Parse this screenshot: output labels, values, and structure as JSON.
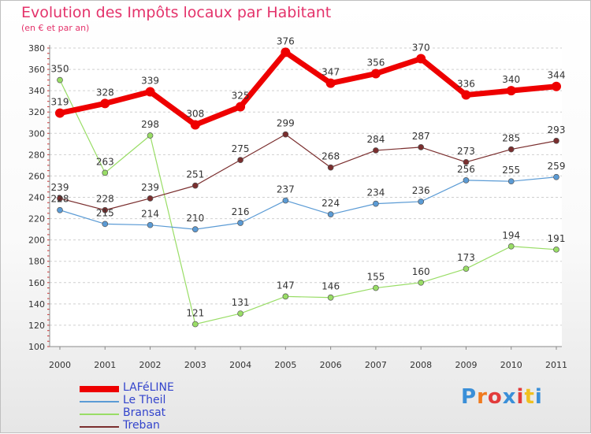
{
  "title": "Evolution des Impôts locaux par Habitant",
  "subtitle": "(en € et par an)",
  "logo": {
    "text": "Proxiti",
    "colors": [
      "#3a8fd8",
      "#f07a1e",
      "#e23b3b",
      "#3a8fd8",
      "#e23b3b",
      "#f0c020",
      "#3a8fd8"
    ]
  },
  "chart_data": {
    "type": "line",
    "title": "Evolution des Impôts locaux par Habitant",
    "subtitle": "(en € et par an)",
    "xlabel": "",
    "ylabel": "",
    "x": [
      "2000",
      "2001",
      "2002",
      "2003",
      "2004",
      "2005",
      "2006",
      "2007",
      "2008",
      "2009",
      "2010",
      "2011"
    ],
    "ylim": [
      100,
      380
    ],
    "yticks": [
      "100",
      "120",
      "140",
      "160",
      "180",
      "200",
      "220",
      "240",
      "260",
      "280",
      "300",
      "320",
      "340",
      "360",
      "380"
    ],
    "grid": "horizontal dashed",
    "legend_position": "bottom-left",
    "series": [
      {
        "name": "LAFéLINE",
        "color": "#ee0000",
        "values": [
          319,
          328,
          339,
          308,
          325,
          376,
          347,
          356,
          370,
          336,
          340,
          344
        ]
      },
      {
        "name": "Le Theil",
        "color": "#5b9bd5",
        "values": [
          228,
          215,
          214,
          210,
          216,
          237,
          224,
          234,
          236,
          256,
          255,
          259
        ]
      },
      {
        "name": "Bransat",
        "color": "#99dd66",
        "values": [
          350,
          263,
          298,
          121,
          131,
          147,
          146,
          155,
          160,
          173,
          194,
          191
        ]
      },
      {
        "name": "Treban",
        "color": "#7a2e2e",
        "values": [
          239,
          228,
          239,
          251,
          275,
          299,
          268,
          284,
          287,
          273,
          285,
          293
        ]
      }
    ]
  }
}
